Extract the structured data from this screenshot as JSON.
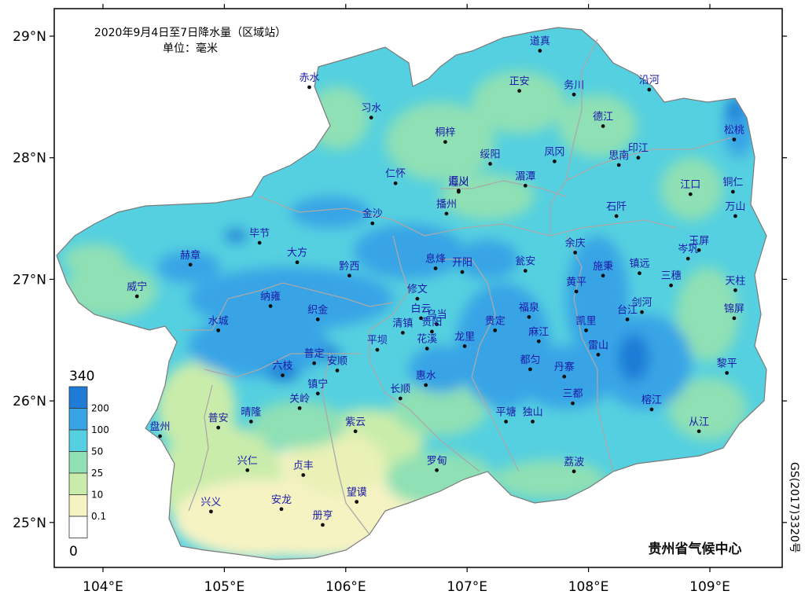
{
  "title": {
    "line1": "2020年9月4日至7日降水量（区域站）",
    "line2": "单位：毫米"
  },
  "axes": {
    "lat_labels": [
      "29°N",
      "28°N",
      "27°N",
      "26°N",
      "25°N"
    ],
    "lat_values": [
      29,
      28,
      27,
      26,
      25
    ],
    "lon_labels": [
      "104°E",
      "105°E",
      "106°E",
      "107°E",
      "108°E",
      "109°E"
    ],
    "lon_values": [
      104,
      105,
      106,
      107,
      108,
      109
    ],
    "lon_range": [
      103.6,
      109.6
    ],
    "lat_range": [
      24.6,
      29.3
    ]
  },
  "legend": {
    "max_label": "340",
    "min_label": "0",
    "bins": [
      {
        "label": "200",
        "color": "#1f7bd6"
      },
      {
        "label": "100",
        "color": "#38a4e6"
      },
      {
        "label": "50",
        "color": "#55d0e0"
      },
      {
        "label": "25",
        "color": "#8fe0b4"
      },
      {
        "label": "10",
        "color": "#c9ecaa"
      },
      {
        "label": "0.1",
        "color": "#f6f3c3"
      },
      {
        "label": "",
        "color": "#ffffff"
      }
    ]
  },
  "credit": "贵州省气候中心",
  "map_code": "GS(2017)3320号",
  "stations": [
    {
      "name": "赤水",
      "lon": 105.7,
      "lat": 28.58
    },
    {
      "name": "习水",
      "lon": 106.21,
      "lat": 28.33
    },
    {
      "name": "道真",
      "lon": 107.6,
      "lat": 28.88
    },
    {
      "name": "正安",
      "lon": 107.43,
      "lat": 28.55
    },
    {
      "name": "务川",
      "lon": 107.88,
      "lat": 28.52
    },
    {
      "name": "沿河",
      "lon": 108.5,
      "lat": 28.56
    },
    {
      "name": "桐梓",
      "lon": 106.82,
      "lat": 28.13
    },
    {
      "name": "德江",
      "lon": 108.12,
      "lat": 28.26
    },
    {
      "name": "松桃",
      "lon": 109.2,
      "lat": 28.15
    },
    {
      "name": "凤冈",
      "lon": 107.72,
      "lat": 27.97
    },
    {
      "name": "印江",
      "lon": 108.41,
      "lat": 28.0
    },
    {
      "name": "思南",
      "lon": 108.25,
      "lat": 27.94
    },
    {
      "name": "绥阳",
      "lon": 107.19,
      "lat": 27.95
    },
    {
      "name": "仁怀",
      "lon": 106.41,
      "lat": 27.79
    },
    {
      "name": "遵义",
      "lon": 106.93,
      "lat": 27.72
    },
    {
      "name": "汇川",
      "lon": 106.93,
      "lat": 27.73
    },
    {
      "name": "湄潭",
      "lon": 107.48,
      "lat": 27.77
    },
    {
      "name": "江口",
      "lon": 108.84,
      "lat": 27.7
    },
    {
      "name": "铜仁",
      "lon": 109.19,
      "lat": 27.72
    },
    {
      "name": "播州",
      "lon": 106.83,
      "lat": 27.54
    },
    {
      "name": "石阡",
      "lon": 108.23,
      "lat": 27.52
    },
    {
      "name": "万山",
      "lon": 109.21,
      "lat": 27.52
    },
    {
      "name": "金沙",
      "lon": 106.22,
      "lat": 27.46
    },
    {
      "name": "毕节",
      "lon": 105.29,
      "lat": 27.3
    },
    {
      "name": "玉屏",
      "lon": 108.91,
      "lat": 27.24
    },
    {
      "name": "岑巩",
      "lon": 108.82,
      "lat": 27.17
    },
    {
      "name": "赫章",
      "lon": 104.72,
      "lat": 27.12
    },
    {
      "name": "大方",
      "lon": 105.6,
      "lat": 27.14
    },
    {
      "name": "息烽",
      "lon": 106.74,
      "lat": 27.09
    },
    {
      "name": "开阳",
      "lon": 106.96,
      "lat": 27.06
    },
    {
      "name": "瓮安",
      "lon": 107.48,
      "lat": 27.07
    },
    {
      "name": "余庆",
      "lon": 107.89,
      "lat": 27.22
    },
    {
      "name": "施秉",
      "lon": 108.12,
      "lat": 27.03
    },
    {
      "name": "镇远",
      "lon": 108.42,
      "lat": 27.05
    },
    {
      "name": "三穗",
      "lon": 108.68,
      "lat": 26.95
    },
    {
      "name": "天柱",
      "lon": 109.21,
      "lat": 26.91
    },
    {
      "name": "黔西",
      "lon": 106.03,
      "lat": 27.03
    },
    {
      "name": "威宁",
      "lon": 104.28,
      "lat": 26.86
    },
    {
      "name": "纳雍",
      "lon": 105.38,
      "lat": 26.78
    },
    {
      "name": "织金",
      "lon": 105.77,
      "lat": 26.67
    },
    {
      "name": "修文",
      "lon": 106.59,
      "lat": 26.84
    },
    {
      "name": "黄平",
      "lon": 107.9,
      "lat": 26.9
    },
    {
      "name": "白云",
      "lon": 106.62,
      "lat": 26.68
    },
    {
      "name": "乌当",
      "lon": 106.75,
      "lat": 26.63
    },
    {
      "name": "福泉",
      "lon": 107.51,
      "lat": 26.69
    },
    {
      "name": "剑河",
      "lon": 108.44,
      "lat": 26.73
    },
    {
      "name": "台江",
      "lon": 108.32,
      "lat": 26.67
    },
    {
      "name": "锦屏",
      "lon": 109.2,
      "lat": 26.68
    },
    {
      "name": "水城",
      "lon": 104.95,
      "lat": 26.58
    },
    {
      "name": "清镇",
      "lon": 106.47,
      "lat": 26.56
    },
    {
      "name": "贵阳",
      "lon": 106.71,
      "lat": 26.57
    },
    {
      "name": "贵定",
      "lon": 107.23,
      "lat": 26.58
    },
    {
      "name": "凯里",
      "lon": 107.98,
      "lat": 26.58
    },
    {
      "name": "麻江",
      "lon": 107.59,
      "lat": 26.49
    },
    {
      "name": "龙里",
      "lon": 106.98,
      "lat": 26.45
    },
    {
      "name": "花溪",
      "lon": 106.67,
      "lat": 26.43
    },
    {
      "name": "雷山",
      "lon": 108.08,
      "lat": 26.38
    },
    {
      "name": "平坝",
      "lon": 106.26,
      "lat": 26.42
    },
    {
      "name": "普定",
      "lon": 105.74,
      "lat": 26.31
    },
    {
      "name": "安顺",
      "lon": 105.93,
      "lat": 26.25
    },
    {
      "name": "都匀",
      "lon": 107.52,
      "lat": 26.26
    },
    {
      "name": "丹寨",
      "lon": 107.8,
      "lat": 26.2
    },
    {
      "name": "六枝",
      "lon": 105.48,
      "lat": 26.21
    },
    {
      "name": "黎平",
      "lon": 109.14,
      "lat": 26.23
    },
    {
      "name": "惠水",
      "lon": 106.66,
      "lat": 26.13
    },
    {
      "name": "镇宁",
      "lon": 105.77,
      "lat": 26.06
    },
    {
      "name": "长顺",
      "lon": 106.45,
      "lat": 26.02
    },
    {
      "name": "三都",
      "lon": 107.87,
      "lat": 25.98
    },
    {
      "name": "关岭",
      "lon": 105.62,
      "lat": 25.94
    },
    {
      "name": "榕江",
      "lon": 108.52,
      "lat": 25.93
    },
    {
      "name": "平塘",
      "lon": 107.32,
      "lat": 25.83
    },
    {
      "name": "独山",
      "lon": 107.54,
      "lat": 25.83
    },
    {
      "name": "晴隆",
      "lon": 105.22,
      "lat": 25.83
    },
    {
      "name": "紫云",
      "lon": 106.08,
      "lat": 25.75
    },
    {
      "name": "从江",
      "lon": 108.91,
      "lat": 25.75
    },
    {
      "name": "普安",
      "lon": 104.95,
      "lat": 25.78
    },
    {
      "name": "盘州",
      "lon": 104.47,
      "lat": 25.71
    },
    {
      "name": "罗甸",
      "lon": 106.75,
      "lat": 25.43
    },
    {
      "name": "荔波",
      "lon": 107.88,
      "lat": 25.42
    },
    {
      "name": "兴仁",
      "lon": 105.19,
      "lat": 25.43
    },
    {
      "name": "贞丰",
      "lon": 105.65,
      "lat": 25.39
    },
    {
      "name": "望谟",
      "lon": 106.09,
      "lat": 25.17
    },
    {
      "name": "兴义",
      "lon": 104.89,
      "lat": 25.09
    },
    {
      "name": "安龙",
      "lon": 105.47,
      "lat": 25.11
    },
    {
      "name": "册亨",
      "lon": 105.81,
      "lat": 24.98
    }
  ]
}
